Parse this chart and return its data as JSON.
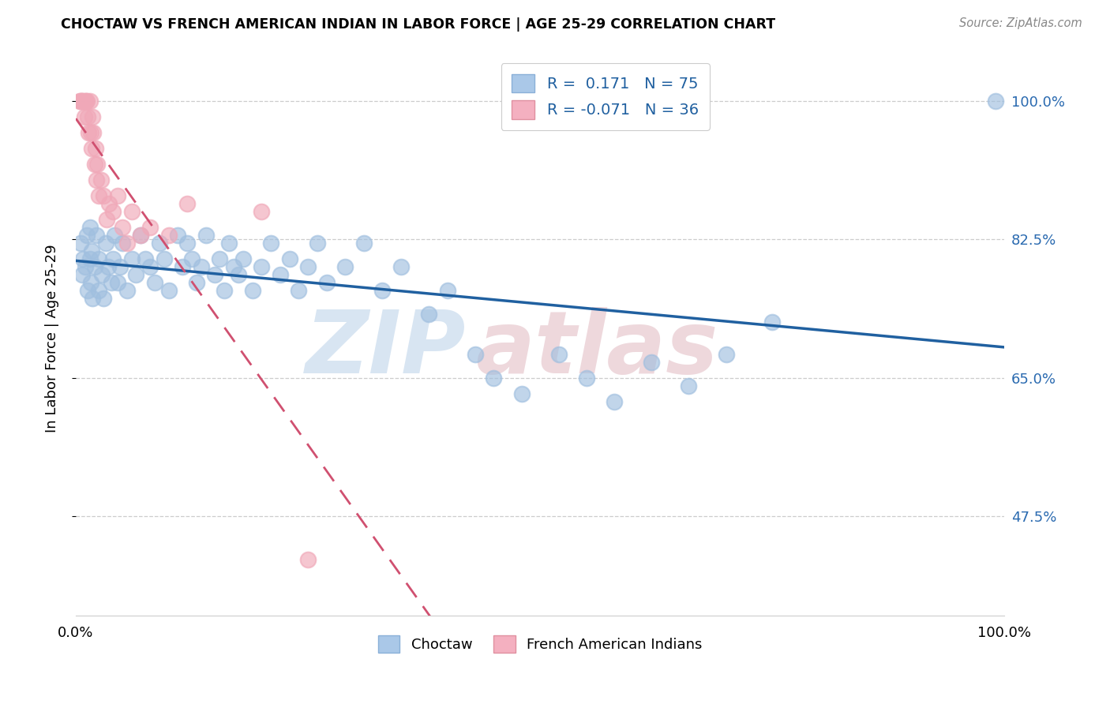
{
  "title": "CHOCTAW VS FRENCH AMERICAN INDIAN IN LABOR FORCE | AGE 25-29 CORRELATION CHART",
  "source": "Source: ZipAtlas.com",
  "ylabel": "In Labor Force | Age 25-29",
  "xmin": 0.0,
  "xmax": 1.0,
  "ymin": 0.35,
  "ymax": 1.05,
  "yticks": [
    0.475,
    0.65,
    0.825,
    1.0
  ],
  "ytick_labels": [
    "47.5%",
    "65.0%",
    "82.5%",
    "100.0%"
  ],
  "legend_R1": "0.171",
  "legend_N1": "75",
  "legend_R2": "-0.071",
  "legend_N2": "36",
  "blue_color": "#a0bfdf",
  "pink_color": "#f0a8b8",
  "line_blue": "#2060a0",
  "line_pink": "#d05070",
  "choctaw_x": [
    0.005,
    0.007,
    0.008,
    0.01,
    0.012,
    0.013,
    0.015,
    0.015,
    0.016,
    0.017,
    0.018,
    0.02,
    0.022,
    0.025,
    0.025,
    0.028,
    0.03,
    0.032,
    0.035,
    0.038,
    0.04,
    0.042,
    0.045,
    0.048,
    0.05,
    0.055,
    0.06,
    0.065,
    0.07,
    0.075,
    0.08,
    0.085,
    0.09,
    0.095,
    0.1,
    0.11,
    0.115,
    0.12,
    0.125,
    0.13,
    0.135,
    0.14,
    0.15,
    0.155,
    0.16,
    0.165,
    0.17,
    0.175,
    0.18,
    0.19,
    0.2,
    0.21,
    0.22,
    0.23,
    0.24,
    0.25,
    0.26,
    0.27,
    0.29,
    0.31,
    0.33,
    0.35,
    0.38,
    0.4,
    0.43,
    0.45,
    0.48,
    0.52,
    0.55,
    0.58,
    0.62,
    0.66,
    0.7,
    0.75,
    0.99
  ],
  "choctaw_y": [
    0.82,
    0.78,
    0.8,
    0.79,
    0.83,
    0.76,
    0.8,
    0.84,
    0.77,
    0.81,
    0.75,
    0.79,
    0.83,
    0.76,
    0.8,
    0.78,
    0.75,
    0.82,
    0.79,
    0.77,
    0.8,
    0.83,
    0.77,
    0.79,
    0.82,
    0.76,
    0.8,
    0.78,
    0.83,
    0.8,
    0.79,
    0.77,
    0.82,
    0.8,
    0.76,
    0.83,
    0.79,
    0.82,
    0.8,
    0.77,
    0.79,
    0.83,
    0.78,
    0.8,
    0.76,
    0.82,
    0.79,
    0.78,
    0.8,
    0.76,
    0.79,
    0.82,
    0.78,
    0.8,
    0.76,
    0.79,
    0.82,
    0.77,
    0.79,
    0.82,
    0.76,
    0.79,
    0.73,
    0.76,
    0.68,
    0.65,
    0.63,
    0.68,
    0.65,
    0.62,
    0.67,
    0.64,
    0.68,
    0.72,
    1.0
  ],
  "french_x": [
    0.004,
    0.005,
    0.006,
    0.007,
    0.008,
    0.009,
    0.01,
    0.011,
    0.012,
    0.013,
    0.014,
    0.015,
    0.016,
    0.017,
    0.018,
    0.019,
    0.02,
    0.021,
    0.022,
    0.023,
    0.025,
    0.027,
    0.03,
    0.033,
    0.036,
    0.04,
    0.045,
    0.05,
    0.055,
    0.06,
    0.07,
    0.08,
    0.1,
    0.12,
    0.2,
    0.25
  ],
  "french_y": [
    1.0,
    1.0,
    1.0,
    1.0,
    1.0,
    0.98,
    1.0,
    1.0,
    1.0,
    0.98,
    0.96,
    1.0,
    0.96,
    0.94,
    0.98,
    0.96,
    0.92,
    0.94,
    0.9,
    0.92,
    0.88,
    0.9,
    0.88,
    0.85,
    0.87,
    0.86,
    0.88,
    0.84,
    0.82,
    0.86,
    0.83,
    0.84,
    0.83,
    0.87,
    0.86,
    0.42
  ]
}
